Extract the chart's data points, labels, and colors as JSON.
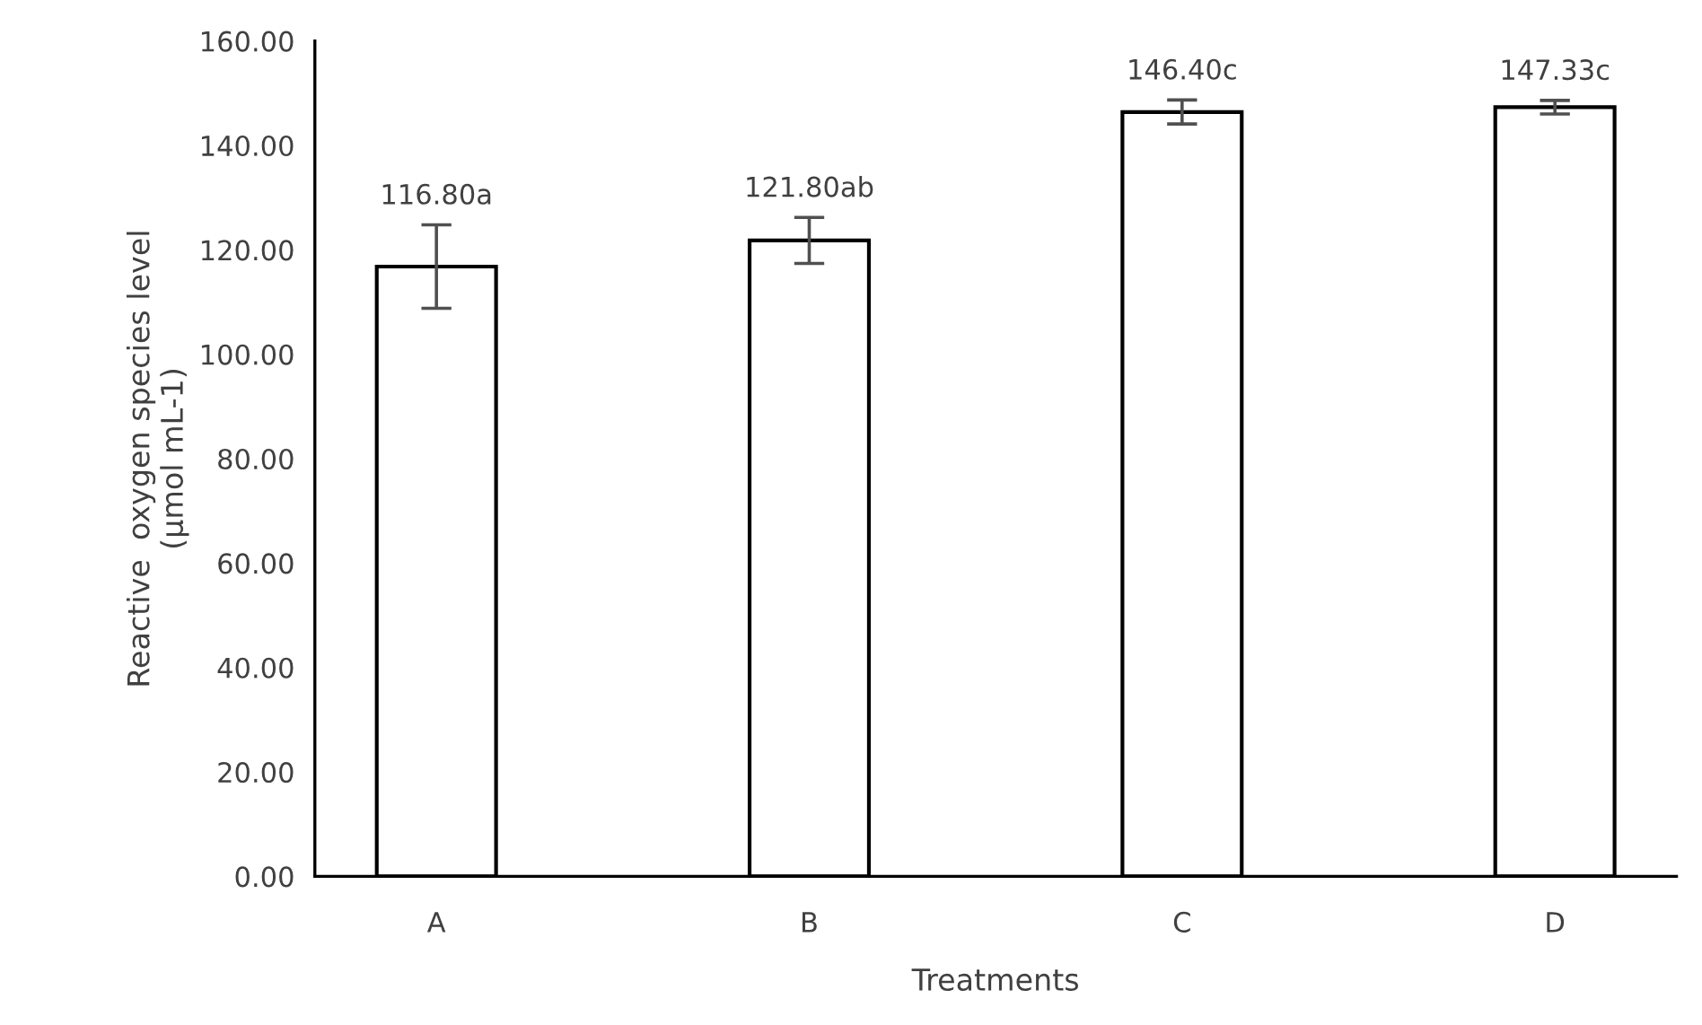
{
  "chart_data": {
    "type": "bar",
    "xlabel": "Treatments",
    "ylabel": "Reactive  oxygen species level\n(μmol mL-1)",
    "categories": [
      "A",
      "B",
      "C",
      "D"
    ],
    "values": [
      116.8,
      121.8,
      146.4,
      147.33
    ],
    "errors": [
      8,
      4.4,
      2.3,
      1.3
    ],
    "value_labels": [
      "116.80a",
      "121.80ab",
      "146.40c",
      "147.33c"
    ],
    "color": "#ffffff",
    "ylim": [
      0,
      160
    ],
    "yticks": [
      {
        "value": 0,
        "label": "0.00"
      },
      {
        "value": 20,
        "label": "20.00"
      },
      {
        "value": 40,
        "label": "40.00"
      },
      {
        "value": 60,
        "label": "60.00"
      },
      {
        "value": 80,
        "label": "80.00"
      },
      {
        "value": 100,
        "label": "100.00"
      },
      {
        "value": 120,
        "label": "120.00"
      },
      {
        "value": 140,
        "label": "140.00"
      },
      {
        "value": 160,
        "label": "160.00"
      }
    ],
    "grid": false
  }
}
